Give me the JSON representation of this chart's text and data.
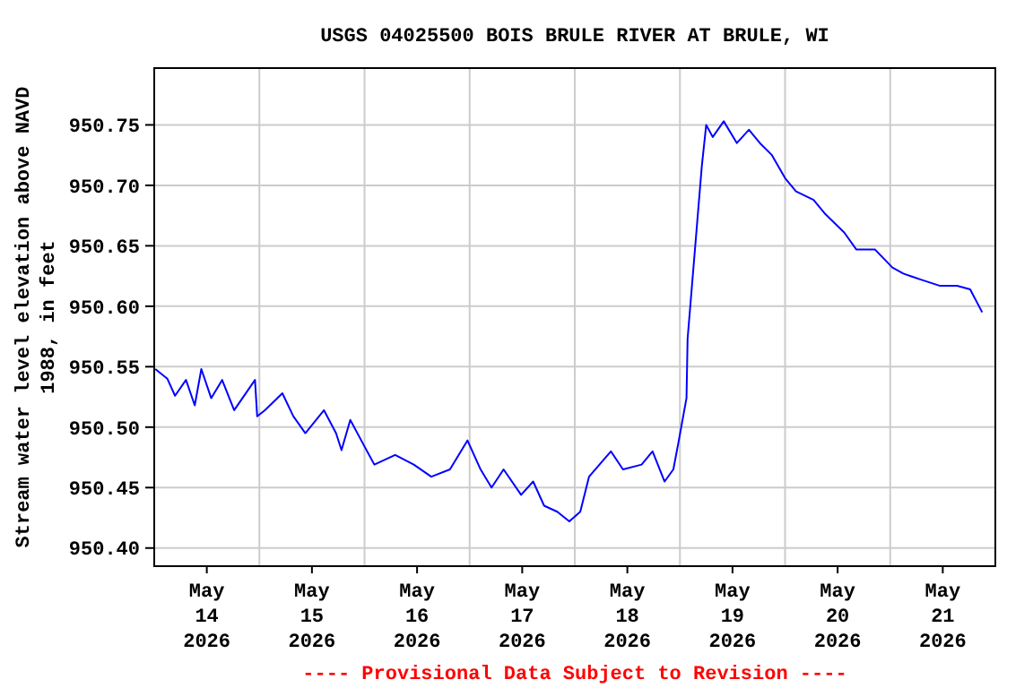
{
  "chart_data": {
    "type": "line",
    "title": "USGS 04025500 BOIS BRULE RIVER AT BRULE, WI",
    "ylabel": "Stream water level elevation above NAVD\n1988, in feet",
    "annotations": [
      "---- Provisional Data Subject to Revision ----"
    ],
    "x": [
      "2026-05-14T00:15",
      "2026-05-14T03:00",
      "2026-05-14T04:45",
      "2026-05-14T07:15",
      "2026-05-14T09:15",
      "2026-05-14T10:45",
      "2026-05-14T13:00",
      "2026-05-14T15:30",
      "2026-05-14T18:15",
      "2026-05-14T23:00",
      "2026-05-14T23:30",
      "2026-05-15T01:15",
      "2026-05-15T05:15",
      "2026-05-15T07:45",
      "2026-05-15T10:30",
      "2026-05-15T14:45",
      "2026-05-15T17:30",
      "2026-05-15T18:45",
      "2026-05-15T20:45",
      "2026-05-16T00:00",
      "2026-05-16T02:15",
      "2026-05-16T07:00",
      "2026-05-16T11:15",
      "2026-05-16T15:15",
      "2026-05-16T19:30",
      "2026-05-16T23:30",
      "2026-05-17T02:30",
      "2026-05-17T05:00",
      "2026-05-17T07:45",
      "2026-05-17T11:45",
      "2026-05-17T14:30",
      "2026-05-17T17:00",
      "2026-05-17T20:00",
      "2026-05-17T22:45",
      "2026-05-18T01:15",
      "2026-05-18T03:15",
      "2026-05-18T08:15",
      "2026-05-18T11:00",
      "2026-05-18T15:15",
      "2026-05-18T17:45",
      "2026-05-18T20:30",
      "2026-05-18T22:30",
      "2026-05-18T23:45",
      "2026-05-19T01:30",
      "2026-05-19T01:45",
      "2026-05-19T02:45",
      "2026-05-19T04:00",
      "2026-05-19T05:00",
      "2026-05-19T06:00",
      "2026-05-19T07:30",
      "2026-05-19T10:00",
      "2026-05-19T13:00",
      "2026-05-19T15:45",
      "2026-05-19T18:15",
      "2026-05-19T21:00",
      "2026-05-20T00:00",
      "2026-05-20T02:30",
      "2026-05-20T06:30",
      "2026-05-20T09:15",
      "2026-05-20T13:30",
      "2026-05-20T16:15",
      "2026-05-20T20:30",
      "2026-05-21T00:30",
      "2026-05-21T03:00",
      "2026-05-21T07:00",
      "2026-05-21T11:15",
      "2026-05-21T15:15",
      "2026-05-21T18:15",
      "2026-05-21T21:00"
    ],
    "series": [
      {
        "color": "#0000ff",
        "values": [
          950.548,
          950.54,
          950.526,
          950.539,
          950.518,
          950.548,
          950.524,
          950.539,
          950.514,
          950.539,
          950.509,
          950.514,
          950.528,
          950.509,
          950.495,
          950.514,
          950.495,
          950.481,
          950.506,
          950.484,
          950.469,
          950.477,
          950.469,
          950.459,
          950.465,
          950.489,
          950.465,
          950.45,
          950.465,
          950.444,
          950.455,
          950.435,
          950.43,
          950.422,
          950.43,
          950.459,
          950.48,
          950.465,
          950.469,
          950.48,
          950.455,
          950.465,
          950.489,
          950.524,
          950.573,
          950.617,
          950.672,
          950.716,
          950.75,
          950.74,
          950.753,
          950.735,
          950.746,
          950.735,
          950.725,
          950.706,
          950.695,
          950.688,
          950.676,
          950.661,
          950.647,
          950.647,
          950.632,
          950.627,
          950.622,
          950.617,
          950.617,
          950.614,
          950.595
        ]
      }
    ],
    "xlim": [
      "2026-05-14T00:00",
      "2026-05-22T00:00"
    ],
    "xticks": [
      {
        "value": "2026-05-14T12:00",
        "label": "May\n14\n2026"
      },
      {
        "value": "2026-05-15T00:00",
        "label": null
      },
      {
        "value": "2026-05-15T12:00",
        "label": "May\n15\n2026"
      },
      {
        "value": "2026-05-16T00:00",
        "label": null
      },
      {
        "value": "2026-05-16T12:00",
        "label": "May\n16\n2026"
      },
      {
        "value": "2026-05-17T00:00",
        "label": null
      },
      {
        "value": "2026-05-17T12:00",
        "label": "May\n17\n2026"
      },
      {
        "value": "2026-05-18T00:00",
        "label": null
      },
      {
        "value": "2026-05-18T12:00",
        "label": "May\n18\n2026"
      },
      {
        "value": "2026-05-19T00:00",
        "label": null
      },
      {
        "value": "2026-05-19T12:00",
        "label": "May\n19\n2026"
      },
      {
        "value": "2026-05-20T00:00",
        "label": null
      },
      {
        "value": "2026-05-20T12:00",
        "label": "May\n20\n2026"
      },
      {
        "value": "2026-05-21T00:00",
        "label": null
      },
      {
        "value": "2026-05-21T12:00",
        "label": "May\n21\n2026"
      }
    ],
    "ylim": [
      950.385,
      950.797
    ],
    "yticks": [
      {
        "value": 950.4,
        "label": "950.40"
      },
      {
        "value": 950.45,
        "label": "950.45"
      },
      {
        "value": 950.5,
        "label": "950.50"
      },
      {
        "value": 950.55,
        "label": "950.55"
      },
      {
        "value": 950.6,
        "label": "950.60"
      },
      {
        "value": 950.65,
        "label": "950.65"
      },
      {
        "value": 950.7,
        "label": "950.70"
      },
      {
        "value": 950.75,
        "label": "950.75"
      }
    ],
    "grid": true,
    "marker": "none",
    "line_style": "solid"
  }
}
